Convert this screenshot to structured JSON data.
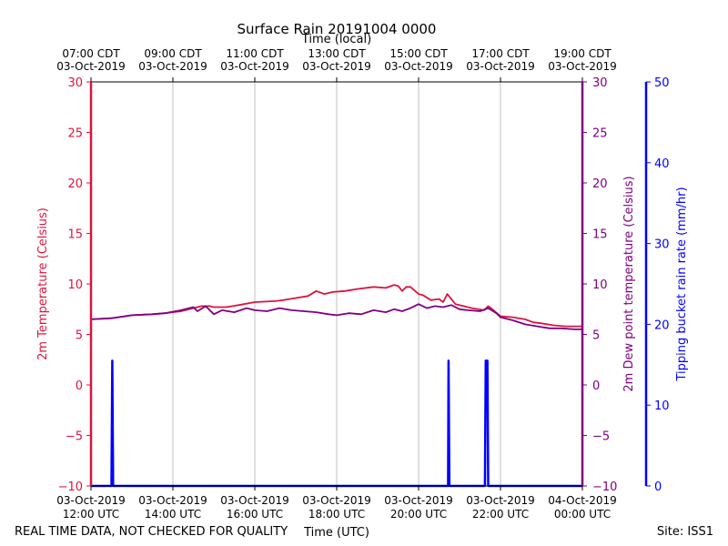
{
  "chart_data": {
    "type": "line",
    "title": "Surface Rain 20191004 0000",
    "top_axis_label": "Time (local)",
    "xlabel": "Time (UTC)",
    "ylabel_left": "2m Temperature (Celsius)",
    "ylabel_right_inner": "2m Dew point temperature (Celsius)",
    "ylabel_right_outer": "Tipping bucket rain rate (mm/hr)",
    "footer_left": "REAL TIME DATA, NOT CHECKED FOR QUALITY",
    "footer_right": "Site: ISS1",
    "x_range_hours_utc": [
      12,
      24
    ],
    "ylim_temperature": [
      -10,
      30
    ],
    "ylim_rain": [
      0,
      50
    ],
    "grid": "vertical",
    "y_ticks_temperature": [
      "30",
      "25",
      "20",
      "15",
      "10",
      "5",
      "0",
      "−5",
      "−10"
    ],
    "y_tick_values_temperature": [
      30,
      25,
      20,
      15,
      10,
      5,
      0,
      -5,
      -10
    ],
    "y_ticks_rain": [
      "50",
      "40",
      "30",
      "20",
      "10",
      "0"
    ],
    "y_tick_values_rain": [
      50,
      40,
      30,
      20,
      10,
      0
    ],
    "x_ticks_bottom": [
      {
        "hour": 12,
        "line1": "03-Oct-2019",
        "line2": "12:00 UTC"
      },
      {
        "hour": 14,
        "line1": "03-Oct-2019",
        "line2": "14:00 UTC"
      },
      {
        "hour": 16,
        "line1": "03-Oct-2019",
        "line2": "16:00 UTC"
      },
      {
        "hour": 18,
        "line1": "03-Oct-2019",
        "line2": "18:00 UTC"
      },
      {
        "hour": 20,
        "line1": "03-Oct-2019",
        "line2": "20:00 UTC"
      },
      {
        "hour": 22,
        "line1": "03-Oct-2019",
        "line2": "22:00 UTC"
      },
      {
        "hour": 24,
        "line1": "04-Oct-2019",
        "line2": "00:00 UTC"
      }
    ],
    "x_ticks_top": [
      {
        "hour": 12,
        "line1": "07:00 CDT",
        "line2": "03-Oct-2019"
      },
      {
        "hour": 14,
        "line1": "09:00 CDT",
        "line2": "03-Oct-2019"
      },
      {
        "hour": 16,
        "line1": "11:00 CDT",
        "line2": "03-Oct-2019"
      },
      {
        "hour": 18,
        "line1": "13:00 CDT",
        "line2": "03-Oct-2019"
      },
      {
        "hour": 20,
        "line1": "15:00 CDT",
        "line2": "03-Oct-2019"
      },
      {
        "hour": 22,
        "line1": "17:00 CDT",
        "line2": "03-Oct-2019"
      },
      {
        "hour": 24,
        "line1": "19:00 CDT",
        "line2": "03-Oct-2019"
      }
    ],
    "series": [
      {
        "name": "2m Temperature",
        "color": "#dc143c",
        "axis": "temperature",
        "x": [
          12.0,
          12.5,
          13.0,
          13.5,
          13.8,
          14.2,
          14.5,
          14.7,
          14.9,
          15.0,
          15.3,
          15.6,
          16.0,
          16.5,
          16.7,
          17.0,
          17.3,
          17.5,
          17.7,
          17.9,
          18.2,
          18.5,
          18.9,
          19.2,
          19.4,
          19.5,
          19.6,
          19.7,
          19.8,
          20.0,
          20.1,
          20.3,
          20.5,
          20.6,
          20.7,
          20.9,
          21.1,
          21.3,
          21.6,
          21.7,
          21.8,
          22.0,
          22.3,
          22.6,
          22.8,
          23.0,
          23.3,
          23.6,
          24.0
        ],
        "y": [
          6.5,
          6.6,
          6.9,
          7.0,
          7.1,
          7.3,
          7.6,
          7.8,
          7.8,
          7.7,
          7.7,
          7.9,
          8.2,
          8.3,
          8.4,
          8.6,
          8.8,
          9.3,
          9.0,
          9.2,
          9.3,
          9.5,
          9.7,
          9.6,
          9.9,
          9.8,
          9.3,
          9.7,
          9.7,
          9.0,
          8.9,
          8.4,
          8.5,
          8.2,
          9.0,
          8.0,
          7.8,
          7.6,
          7.4,
          7.8,
          7.5,
          6.8,
          6.7,
          6.5,
          6.2,
          6.1,
          5.9,
          5.8,
          5.8
        ]
      },
      {
        "name": "2m Dew point temperature",
        "color": "#800080",
        "axis": "temperature",
        "x": [
          12.0,
          12.5,
          13.0,
          13.5,
          13.8,
          14.2,
          14.5,
          14.6,
          14.8,
          15.0,
          15.2,
          15.5,
          15.8,
          16.0,
          16.3,
          16.6,
          16.9,
          17.2,
          17.5,
          17.8,
          18.0,
          18.3,
          18.6,
          18.9,
          19.2,
          19.4,
          19.6,
          19.8,
          20.0,
          20.2,
          20.4,
          20.6,
          20.8,
          21.0,
          21.2,
          21.5,
          21.7,
          21.9,
          22.0,
          22.3,
          22.6,
          22.9,
          23.2,
          23.5,
          23.8,
          24.0
        ],
        "y": [
          6.5,
          6.6,
          6.9,
          7.0,
          7.1,
          7.4,
          7.7,
          7.3,
          7.8,
          7.0,
          7.4,
          7.2,
          7.6,
          7.4,
          7.3,
          7.6,
          7.4,
          7.3,
          7.2,
          7.0,
          6.9,
          7.1,
          7.0,
          7.4,
          7.2,
          7.5,
          7.3,
          7.6,
          8.0,
          7.6,
          7.8,
          7.7,
          7.9,
          7.5,
          7.4,
          7.3,
          7.6,
          7.1,
          6.7,
          6.4,
          6.0,
          5.8,
          5.6,
          5.6,
          5.5,
          5.5
        ]
      },
      {
        "name": "Tipping bucket rain rate",
        "color": "#0000ff",
        "axis": "rain",
        "x": [
          12.0,
          12.5,
          12.52,
          12.54,
          20.72,
          20.73,
          20.75,
          21.62,
          21.64,
          21.68,
          21.7,
          24.0
        ],
        "y": [
          0,
          0,
          15.5,
          0,
          0,
          15.5,
          0,
          0,
          15.5,
          15.5,
          0,
          0
        ]
      }
    ]
  }
}
